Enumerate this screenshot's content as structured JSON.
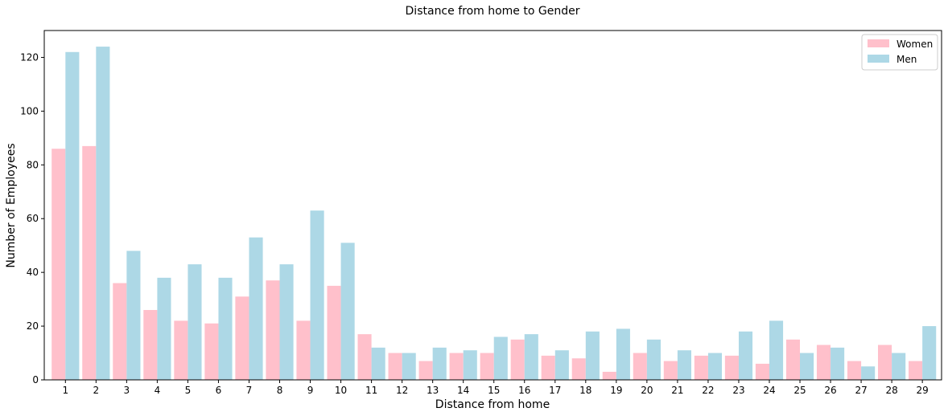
{
  "chart_data": {
    "type": "bar",
    "title": "Distance from home to Gender",
    "xlabel": "Distance from home",
    "ylabel": "Number of Employees",
    "categories": [
      "1",
      "2",
      "3",
      "4",
      "5",
      "6",
      "7",
      "8",
      "9",
      "10",
      "11",
      "12",
      "13",
      "14",
      "15",
      "16",
      "17",
      "18",
      "19",
      "20",
      "21",
      "22",
      "23",
      "24",
      "25",
      "26",
      "27",
      "28",
      "29"
    ],
    "series": [
      {
        "name": "Women",
        "color": "#ffc0cb",
        "values": [
          86,
          87,
          36,
          26,
          22,
          21,
          31,
          37,
          22,
          35,
          17,
          10,
          7,
          10,
          10,
          15,
          9,
          8,
          3,
          10,
          7,
          9,
          9,
          6,
          15,
          13,
          7,
          13,
          7
        ]
      },
      {
        "name": "Men",
        "color": "#add8e6",
        "values": [
          122,
          124,
          48,
          38,
          43,
          38,
          53,
          43,
          63,
          51,
          12,
          10,
          12,
          11,
          16,
          17,
          11,
          18,
          19,
          15,
          11,
          10,
          18,
          22,
          10,
          12,
          5,
          10,
          20
        ]
      }
    ],
    "ylim": [
      0,
      130
    ],
    "yticks": [
      0,
      20,
      40,
      60,
      80,
      100,
      120
    ],
    "grid": false,
    "legend_position": "top-right"
  }
}
